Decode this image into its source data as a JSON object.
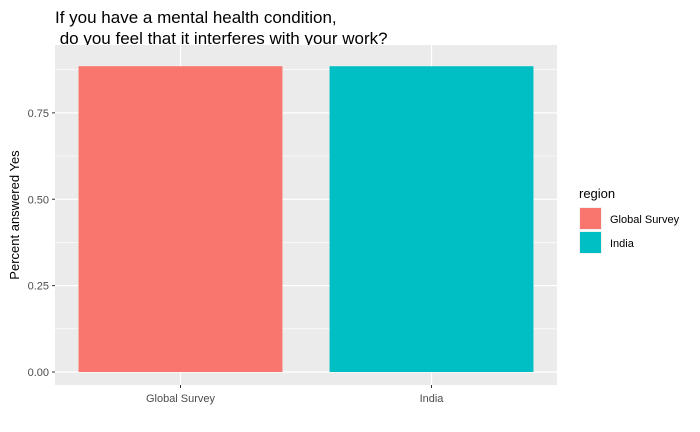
{
  "chart_data": {
    "type": "bar",
    "title": "If you have a mental health condition,\n do you feel that it interferes with your work?",
    "xlabel": "",
    "ylabel": "Percent answered Yes",
    "categories": [
      "Global Survey",
      "India"
    ],
    "values": [
      0.885,
      0.885
    ],
    "colors": [
      "#F8766D",
      "#00BFC4"
    ],
    "ylim": [
      0,
      0.93
    ],
    "yticks": [
      0,
      0.25,
      0.5,
      0.75
    ],
    "ytick_labels": [
      "0.00",
      "0.25",
      "0.50",
      "0.75"
    ],
    "grid": true,
    "legend": {
      "title": "region",
      "position": "right",
      "items": [
        {
          "label": "Global Survey",
          "color": "#F8766D"
        },
        {
          "label": "India",
          "color": "#00BFC4"
        }
      ]
    }
  }
}
